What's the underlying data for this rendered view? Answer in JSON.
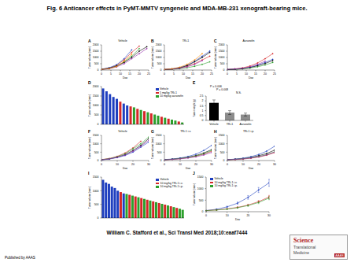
{
  "title": "Fig. 6 Anticancer effects in PyMT-MMTV syngeneic and MDA-MB-231 xenograft-bearing mice.",
  "citation": "William C. Stafford et al., Sci Transl Med 2018;10:eaaf7444",
  "publisher": "Published by AAAS",
  "logo": {
    "line1": "Science",
    "line2": "Translational",
    "line3": "Medicine",
    "tag": "AAAS"
  },
  "chart_data": [
    {
      "type": "line",
      "panel": "A",
      "title": "Vehicle",
      "xlabel": "Day",
      "ylabel": "Tumor volume (mm³)",
      "x": [
        0,
        4,
        8,
        12,
        16,
        20,
        24
      ],
      "xlim": [
        0,
        25
      ],
      "xticks": [
        0,
        5,
        10,
        15,
        20,
        25
      ],
      "ylim": [
        0,
        2000
      ],
      "yticks": [
        0,
        500,
        1000,
        1500,
        2000
      ],
      "series": [
        {
          "color": "#d62728",
          "values": [
            60,
            150,
            380,
            800,
            1400,
            1900,
            null
          ]
        },
        {
          "color": "#1f3fbf",
          "values": [
            70,
            180,
            420,
            900,
            1600,
            null,
            null
          ]
        },
        {
          "color": "#2ca02c",
          "values": [
            50,
            120,
            300,
            650,
            1100,
            1700,
            null
          ]
        },
        {
          "color": "#000000",
          "values": [
            60,
            140,
            320,
            600,
            1000,
            1500,
            1850
          ]
        },
        {
          "color": "#9b30b0",
          "values": [
            40,
            100,
            250,
            500,
            900,
            1300,
            1700
          ]
        },
        {
          "color": "#ff8c00",
          "values": [
            50,
            110,
            280,
            700,
            1250,
            null,
            null
          ]
        }
      ]
    },
    {
      "type": "line",
      "panel": "B",
      "title": "TRi-1",
      "xlabel": "Day",
      "ylabel": "Tumor volume (mm³)",
      "x": [
        0,
        4,
        8,
        12,
        16,
        20,
        24
      ],
      "xlim": [
        0,
        25
      ],
      "xticks": [
        0,
        5,
        10,
        15,
        20,
        25
      ],
      "ylim": [
        0,
        2000
      ],
      "yticks": [
        0,
        500,
        1000,
        1500,
        2000
      ],
      "series": [
        {
          "color": "#d62728",
          "values": [
            40,
            80,
            150,
            300,
            500,
            800,
            1100
          ]
        },
        {
          "color": "#1f3fbf",
          "values": [
            50,
            90,
            200,
            380,
            700,
            1100,
            1500
          ]
        },
        {
          "color": "#2ca02c",
          "values": [
            30,
            60,
            100,
            180,
            300,
            450,
            650
          ]
        },
        {
          "color": "#000000",
          "values": [
            40,
            80,
            160,
            350,
            650,
            1000,
            1400
          ]
        },
        {
          "color": "#9b30b0",
          "values": [
            40,
            70,
            130,
            250,
            450,
            750,
            null
          ]
        },
        {
          "color": "#ff8c00",
          "values": [
            50,
            100,
            220,
            450,
            800,
            1300,
            null
          ]
        }
      ]
    },
    {
      "type": "line",
      "panel": "C",
      "title": "Auranofin",
      "xlabel": "Day",
      "ylabel": "Tumor volume (mm³)",
      "x": [
        0,
        4,
        8,
        12,
        16,
        20,
        24
      ],
      "xlim": [
        0,
        25
      ],
      "xticks": [
        0,
        5,
        10,
        15,
        20,
        25
      ],
      "ylim": [
        0,
        2000
      ],
      "yticks": [
        0,
        500,
        1000,
        1500,
        2000
      ],
      "series": [
        {
          "color": "#d62728",
          "values": [
            50,
            90,
            170,
            320,
            560,
            900,
            1300
          ]
        },
        {
          "color": "#1f3fbf",
          "values": [
            40,
            70,
            120,
            220,
            380,
            600,
            850
          ]
        },
        {
          "color": "#2ca02c",
          "values": [
            30,
            50,
            90,
            160,
            260,
            400,
            600
          ]
        },
        {
          "color": "#000000",
          "values": [
            40,
            60,
            110,
            200,
            340,
            520,
            750
          ]
        },
        {
          "color": "#9b30b0",
          "values": [
            50,
            80,
            140,
            260,
            450,
            700,
            null
          ]
        }
      ]
    },
    {
      "type": "bar",
      "panel": "D",
      "ylabel": "Tumor volume (mm³)",
      "stacked": true,
      "tick_labels": "y",
      "legend": "upper right",
      "categories": [
        null,
        null,
        null,
        null,
        null,
        null,
        null,
        null,
        null,
        null,
        null,
        null,
        null,
        null,
        null,
        null,
        null,
        null,
        null,
        null,
        null,
        null,
        null,
        null
      ],
      "ylim": [
        0,
        2000
      ],
      "yticks": [
        0,
        500,
        1000,
        1500,
        2000
      ],
      "series": [
        {
          "name": "Vehicle",
          "color": "#1f3fbf",
          "values": [
            1900,
            1750,
            1600,
            1450,
            1350,
            null,
            1100,
            1000,
            null,
            null,
            null,
            null,
            null,
            null,
            null,
            null,
            null,
            null,
            null,
            null,
            null,
            null,
            null,
            null
          ]
        },
        {
          "name": "5 mg/kg TRi-1",
          "color": "#d62728",
          "values": [
            null,
            null,
            null,
            null,
            null,
            1200,
            null,
            null,
            950,
            null,
            820,
            null,
            700,
            null,
            580,
            null,
            null,
            400,
            null,
            300,
            null,
            null,
            150,
            null
          ]
        },
        {
          "name": "10 mg/kg auranofin",
          "color": "#2ca02c",
          "values": [
            null,
            null,
            null,
            null,
            null,
            null,
            null,
            null,
            null,
            900,
            null,
            760,
            null,
            640,
            null,
            520,
            460,
            null,
            350,
            null,
            250,
            200,
            null,
            100
          ]
        }
      ]
    },
    {
      "type": "bar",
      "panel": "E",
      "ylabel": "Tumor weight (g)",
      "categories": [
        "Vehicle",
        "TRi-1",
        "Auranofin"
      ],
      "values": [
        1.8,
        0.8,
        0.6
      ],
      "errors": [
        0.3,
        0.2,
        0.15
      ],
      "colors": [
        "#000000",
        "#8c8c8c",
        "#8c8c8c"
      ],
      "ylim": [
        0,
        2.5
      ],
      "yticks": [
        0,
        0.5,
        1,
        1.5,
        2,
        2.5
      ],
      "annotations": [
        "P = 0.006",
        "P = 0.008",
        "N.S."
      ]
    },
    {
      "type": "line",
      "panel": "F",
      "title": "Vehicle",
      "xlabel": "Day",
      "ylabel": "Tumor volume (mm³)",
      "x": [
        0,
        5,
        10,
        15,
        20,
        25,
        30
      ],
      "xlim": [
        0,
        30
      ],
      "xticks": [
        0,
        10,
        20,
        30
      ],
      "ylim": [
        0,
        1500
      ],
      "yticks": [
        0,
        500,
        1000,
        1500
      ],
      "series": [
        {
          "color": "#000000",
          "values": [
            50,
            100,
            200,
            350,
            600,
            900,
            1300
          ]
        },
        {
          "color": "#d62728",
          "values": [
            60,
            120,
            250,
            450,
            750,
            1150,
            null
          ]
        },
        {
          "color": "#1f3fbf",
          "values": [
            40,
            90,
            180,
            300,
            500,
            800,
            1100
          ]
        },
        {
          "color": "#2ca02c",
          "values": [
            50,
            110,
            230,
            400,
            700,
            1000,
            1400
          ]
        },
        {
          "color": "#9b30b0",
          "values": [
            45,
            95,
            190,
            330,
            550,
            850,
            1200
          ]
        }
      ]
    },
    {
      "type": "line",
      "panel": "G",
      "title": "TRi-1 i.v.",
      "xlabel": "Day",
      "ylabel": "Tumor volume (mm³)",
      "x": [
        0,
        5,
        10,
        15,
        20,
        25,
        30
      ],
      "xlim": [
        0,
        30
      ],
      "xticks": [
        0,
        10,
        20,
        30
      ],
      "ylim": [
        0,
        1500
      ],
      "yticks": [
        0,
        500,
        1000,
        1500
      ],
      "series": [
        {
          "color": "#000000",
          "values": [
            50,
            80,
            130,
            200,
            300,
            450,
            650
          ]
        },
        {
          "color": "#d62728",
          "values": [
            40,
            70,
            110,
            170,
            260,
            380,
            550
          ]
        },
        {
          "color": "#1f3fbf",
          "values": [
            60,
            90,
            150,
            240,
            380,
            600,
            900
          ]
        },
        {
          "color": "#2ca02c",
          "values": [
            50,
            75,
            120,
            180,
            270,
            400,
            600
          ]
        },
        {
          "color": "#9b30b0",
          "values": [
            45,
            70,
            100,
            150,
            220,
            330,
            480
          ]
        }
      ]
    },
    {
      "type": "line",
      "panel": "H",
      "title": "TRi-1 i.p.",
      "xlabel": "Day",
      "ylabel": "Tumor volume (mm³)",
      "x": [
        0,
        5,
        10,
        15,
        20,
        25,
        30
      ],
      "xlim": [
        0,
        30
      ],
      "xticks": [
        0,
        10,
        20,
        30
      ],
      "ylim": [
        0,
        1500
      ],
      "yticks": [
        0,
        500,
        1000,
        1500
      ],
      "series": [
        {
          "color": "#000000",
          "values": [
            50,
            80,
            120,
            190,
            290,
            420,
            620
          ]
        },
        {
          "color": "#d62728",
          "values": [
            40,
            60,
            90,
            140,
            210,
            320,
            470
          ]
        },
        {
          "color": "#1f3fbf",
          "values": [
            55,
            85,
            140,
            230,
            360,
            560,
            850
          ]
        },
        {
          "color": "#2ca02c",
          "values": [
            45,
            70,
            110,
            160,
            240,
            350,
            520
          ]
        },
        {
          "color": "#9b30b0",
          "values": [
            50,
            70,
            100,
            150,
            230,
            340,
            500
          ]
        }
      ]
    },
    {
      "type": "bar",
      "panel": "I",
      "ylabel": "Tumor volume (mm³)",
      "stacked": true,
      "tick_labels": "y",
      "legend": "upper right",
      "categories": [
        null,
        null,
        null,
        null,
        null,
        null,
        null,
        null,
        null,
        null,
        null,
        null,
        null,
        null,
        null,
        null,
        null,
        null,
        null,
        null,
        null,
        null,
        null,
        null,
        null,
        null,
        null,
        null
      ],
      "ylim": [
        0,
        1500
      ],
      "yticks": [
        0,
        500,
        1000,
        1500
      ],
      "series": [
        {
          "name": "Vehicle",
          "color": "#1f3fbf",
          "values": [
            1400,
            1300,
            1250,
            1150,
            1100,
            1000,
            null,
            900,
            null,
            null,
            null,
            null,
            null,
            null,
            null,
            null,
            null,
            null,
            null,
            null,
            null,
            null,
            null,
            null,
            null,
            null,
            null,
            null
          ]
        },
        {
          "name": "10 mg/kg TRi-1 i.v.",
          "color": "#d62728",
          "values": [
            null,
            null,
            null,
            null,
            null,
            null,
            950,
            null,
            null,
            850,
            null,
            790,
            null,
            730,
            null,
            670,
            null,
            610,
            null,
            550,
            null,
            490,
            null,
            430,
            null,
            370,
            null,
            null
          ]
        },
        {
          "name": "10 mg/kg TRi-1 i.p.",
          "color": "#2ca02c",
          "values": [
            null,
            null,
            null,
            null,
            null,
            null,
            null,
            null,
            880,
            null,
            820,
            null,
            760,
            null,
            700,
            null,
            640,
            null,
            580,
            null,
            520,
            null,
            460,
            null,
            400,
            null,
            340,
            300
          ]
        }
      ]
    },
    {
      "type": "line",
      "panel": "J",
      "xlabel": "Day",
      "ylabel": "Tumor volume (mm³)",
      "legend": "upper left",
      "x": [
        0,
        5,
        10,
        15,
        20,
        25,
        30
      ],
      "xlim": [
        0,
        30
      ],
      "xticks": [
        0,
        10,
        20,
        30
      ],
      "ylim": [
        0,
        1500
      ],
      "yticks": [
        0,
        500,
        1000,
        1500
      ],
      "series": [
        {
          "name": "Vehicle",
          "color": "#1f3fbf",
          "values": [
            50,
            105,
            210,
            370,
            620,
            940,
            1250
          ],
          "errors": [
            5,
            15,
            30,
            50,
            80,
            110,
            150
          ]
        },
        {
          "name": "10 mg/kg TRi-1 i.v.",
          "color": "#d62728",
          "values": [
            48,
            77,
            122,
            188,
            286,
            436,
            636
          ],
          "errors": [
            5,
            10,
            15,
            25,
            35,
            50,
            70
          ]
        },
        {
          "name": "10 mg/kg TRi-1 i.p.",
          "color": "#2ca02c",
          "values": [
            48,
            73,
            112,
            174,
            266,
            398,
            592
          ],
          "errors": [
            5,
            10,
            15,
            25,
            35,
            50,
            70
          ]
        }
      ]
    }
  ]
}
